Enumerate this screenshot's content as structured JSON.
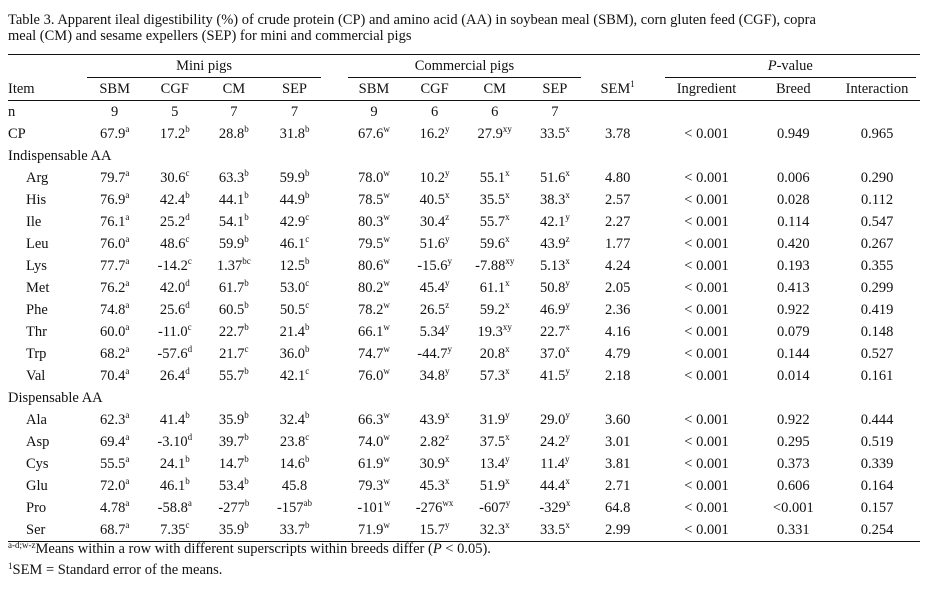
{
  "caption": {
    "line1": "Table 3. Apparent ileal digestibility (%) of crude protein (CP) and amino acid (AA) in soybean meal (SBM), corn gluten feed (CGF), copra",
    "line2": "meal (CM) and sesame expellers (SEP) for mini and commercial pigs"
  },
  "header": {
    "mini_pigs": "Mini pigs",
    "commercial_pigs": "Commercial pigs",
    "pvalue_prefix": "P",
    "pvalue_suffix": "-value",
    "item": "Item",
    "mini_cols": [
      "SBM",
      "CGF",
      "CM",
      "SEP"
    ],
    "com_cols": [
      "SBM",
      "CGF",
      "CM",
      "SEP"
    ],
    "sem": "SEM",
    "sem_sup": "1",
    "ingredient": "Ingredient",
    "breed": "Breed",
    "interaction": "Interaction"
  },
  "n_row": {
    "label": "n",
    "mini": [
      "9",
      "5",
      "7",
      "7"
    ],
    "com": [
      "9",
      "6",
      "6",
      "7"
    ]
  },
  "cp_row": {
    "label": "CP",
    "mini": [
      [
        "67.9",
        "a"
      ],
      [
        "17.2",
        "b"
      ],
      [
        "28.8",
        "b"
      ],
      [
        "31.8",
        "b"
      ]
    ],
    "com": [
      [
        "67.6",
        "w"
      ],
      [
        "16.2",
        "y"
      ],
      [
        "27.9",
        "xy"
      ],
      [
        "33.5",
        "x"
      ]
    ],
    "sem": "3.78",
    "ingredient": "< 0.001",
    "breed": "0.949",
    "interaction": "0.965"
  },
  "sections": [
    {
      "title": "Indispensable AA",
      "rows": [
        {
          "label": "Arg",
          "mini": [
            [
              "79.7",
              "a"
            ],
            [
              "30.6",
              "c"
            ],
            [
              "63.3",
              "b"
            ],
            [
              "59.9",
              "b"
            ]
          ],
          "com": [
            [
              "78.0",
              "w"
            ],
            [
              "10.2",
              "y"
            ],
            [
              "55.1",
              "x"
            ],
            [
              "51.6",
              "x"
            ]
          ],
          "sem": "4.80",
          "ingredient": "< 0.001",
          "breed": "0.006",
          "interaction": "0.290"
        },
        {
          "label": "His",
          "mini": [
            [
              "76.9",
              "a"
            ],
            [
              "42.4",
              "b"
            ],
            [
              "44.1",
              "b"
            ],
            [
              "44.9",
              "b"
            ]
          ],
          "com": [
            [
              "78.5",
              "w"
            ],
            [
              "40.5",
              "x"
            ],
            [
              "35.5",
              "x"
            ],
            [
              "38.3",
              "x"
            ]
          ],
          "sem": "2.57",
          "ingredient": "< 0.001",
          "breed": "0.028",
          "interaction": "0.112"
        },
        {
          "label": "Ile",
          "mini": [
            [
              "76.1",
              "a"
            ],
            [
              "25.2",
              "d"
            ],
            [
              "54.1",
              "b"
            ],
            [
              "42.9",
              "c"
            ]
          ],
          "com": [
            [
              "80.3",
              "w"
            ],
            [
              "30.4",
              "z"
            ],
            [
              "55.7",
              "x"
            ],
            [
              "42.1",
              "y"
            ]
          ],
          "sem": "2.27",
          "ingredient": "< 0.001",
          "breed": "0.114",
          "interaction": "0.547"
        },
        {
          "label": "Leu",
          "mini": [
            [
              "76.0",
              "a"
            ],
            [
              "48.6",
              "c"
            ],
            [
              "59.9",
              "b"
            ],
            [
              "46.1",
              "c"
            ]
          ],
          "com": [
            [
              "79.5",
              "w"
            ],
            [
              "51.6",
              "y"
            ],
            [
              "59.6",
              "x"
            ],
            [
              "43.9",
              "z"
            ]
          ],
          "sem": "1.77",
          "ingredient": "< 0.001",
          "breed": "0.420",
          "interaction": "0.267"
        },
        {
          "label": "Lys",
          "mini": [
            [
              "77.7",
              "a"
            ],
            [
              "-14.2",
              "c"
            ],
            [
              "1.37",
              "bc"
            ],
            [
              "12.5",
              "b"
            ]
          ],
          "com": [
            [
              "80.6",
              "w"
            ],
            [
              "-15.6",
              "y"
            ],
            [
              "-7.88",
              "xy"
            ],
            [
              "5.13",
              "x"
            ]
          ],
          "sem": "4.24",
          "ingredient": "< 0.001",
          "breed": "0.193",
          "interaction": "0.355"
        },
        {
          "label": "Met",
          "mini": [
            [
              "76.2",
              "a"
            ],
            [
              "42.0",
              "d"
            ],
            [
              "61.7",
              "b"
            ],
            [
              "53.0",
              "c"
            ]
          ],
          "com": [
            [
              "80.2",
              "w"
            ],
            [
              "45.4",
              "y"
            ],
            [
              "61.1",
              "x"
            ],
            [
              "50.8",
              "y"
            ]
          ],
          "sem": "2.05",
          "ingredient": "< 0.001",
          "breed": "0.413",
          "interaction": "0.299"
        },
        {
          "label": "Phe",
          "mini": [
            [
              "74.8",
              "a"
            ],
            [
              "25.6",
              "d"
            ],
            [
              "60.5",
              "b"
            ],
            [
              "50.5",
              "c"
            ]
          ],
          "com": [
            [
              "78.2",
              "w"
            ],
            [
              "26.5",
              "z"
            ],
            [
              "59.2",
              "x"
            ],
            [
              "46.9",
              "y"
            ]
          ],
          "sem": "2.36",
          "ingredient": "< 0.001",
          "breed": "0.922",
          "interaction": "0.419"
        },
        {
          "label": "Thr",
          "mini": [
            [
              "60.0",
              "a"
            ],
            [
              "-11.0",
              "c"
            ],
            [
              "22.7",
              "b"
            ],
            [
              "21.4",
              "b"
            ]
          ],
          "com": [
            [
              "66.1",
              "w"
            ],
            [
              "5.34",
              "y"
            ],
            [
              "19.3",
              "xy"
            ],
            [
              "22.7",
              "x"
            ]
          ],
          "sem": "4.16",
          "ingredient": "< 0.001",
          "breed": "0.079",
          "interaction": "0.148"
        },
        {
          "label": "Trp",
          "mini": [
            [
              "68.2",
              "a"
            ],
            [
              "-57.6",
              "d"
            ],
            [
              "21.7",
              "c"
            ],
            [
              "36.0",
              "b"
            ]
          ],
          "com": [
            [
              "74.7",
              "w"
            ],
            [
              "-44.7",
              "y"
            ],
            [
              "20.8",
              "x"
            ],
            [
              "37.0",
              "x"
            ]
          ],
          "sem": "4.79",
          "ingredient": "< 0.001",
          "breed": "0.144",
          "interaction": "0.527"
        },
        {
          "label": "Val",
          "mini": [
            [
              "70.4",
              "a"
            ],
            [
              "26.4",
              "d"
            ],
            [
              "55.7",
              "b"
            ],
            [
              "42.1",
              "c"
            ]
          ],
          "com": [
            [
              "76.0",
              "w"
            ],
            [
              "34.8",
              "y"
            ],
            [
              "57.3",
              "x"
            ],
            [
              "41.5",
              "y"
            ]
          ],
          "sem": "2.18",
          "ingredient": "< 0.001",
          "breed": "0.014",
          "interaction": "0.161"
        }
      ]
    },
    {
      "title": "Dispensable AA",
      "rows": [
        {
          "label": "Ala",
          "mini": [
            [
              "62.3",
              "a"
            ],
            [
              "41.4",
              "b"
            ],
            [
              "35.9",
              "b"
            ],
            [
              "32.4",
              "b"
            ]
          ],
          "com": [
            [
              "66.3",
              "w"
            ],
            [
              "43.9",
              "x"
            ],
            [
              "31.9",
              "y"
            ],
            [
              "29.0",
              "y"
            ]
          ],
          "sem": "3.60",
          "ingredient": "< 0.001",
          "breed": "0.922",
          "interaction": "0.444"
        },
        {
          "label": "Asp",
          "mini": [
            [
              "69.4",
              "a"
            ],
            [
              "-3.10",
              "d"
            ],
            [
              "39.7",
              "b"
            ],
            [
              "23.8",
              "c"
            ]
          ],
          "com": [
            [
              "74.0",
              "w"
            ],
            [
              "2.82",
              "z"
            ],
            [
              "37.5",
              "x"
            ],
            [
              "24.2",
              "y"
            ]
          ],
          "sem": "3.01",
          "ingredient": "< 0.001",
          "breed": "0.295",
          "interaction": "0.519"
        },
        {
          "label": "Cys",
          "mini": [
            [
              "55.5",
              "a"
            ],
            [
              "24.1",
              "b"
            ],
            [
              "14.7",
              "b"
            ],
            [
              "14.6",
              "b"
            ]
          ],
          "com": [
            [
              "61.9",
              "w"
            ],
            [
              "30.9",
              "x"
            ],
            [
              "13.4",
              "y"
            ],
            [
              "11.4",
              "y"
            ]
          ],
          "sem": "3.81",
          "ingredient": "< 0.001",
          "breed": "0.373",
          "interaction": "0.339"
        },
        {
          "label": "Glu",
          "mini": [
            [
              "72.0",
              "a"
            ],
            [
              "46.1",
              "b"
            ],
            [
              "53.4",
              "b"
            ],
            [
              "45.8",
              ""
            ]
          ],
          "com": [
            [
              "79.3",
              "w"
            ],
            [
              "45.3",
              "x"
            ],
            [
              "51.9",
              "x"
            ],
            [
              "44.4",
              "x"
            ]
          ],
          "sem": "2.71",
          "ingredient": "< 0.001",
          "breed": "0.606",
          "interaction": "0.164"
        },
        {
          "label": "Pro",
          "mini": [
            [
              "4.78",
              "a"
            ],
            [
              "-58.8",
              "a"
            ],
            [
              "-277",
              "b"
            ],
            [
              "-157",
              "ab"
            ]
          ],
          "com": [
            [
              "-101",
              "w"
            ],
            [
              "-276",
              "wx"
            ],
            [
              "-607",
              "y"
            ],
            [
              "-329",
              "x"
            ]
          ],
          "sem": "64.8",
          "ingredient": "< 0.001",
          "breed": "<0.001",
          "interaction": "0.157"
        },
        {
          "label": "Ser",
          "mini": [
            [
              "68.7",
              "a"
            ],
            [
              "7.35",
              "c"
            ],
            [
              "35.9",
              "b"
            ],
            [
              "33.7",
              "b"
            ]
          ],
          "com": [
            [
              "71.9",
              "w"
            ],
            [
              "15.7",
              "y"
            ],
            [
              "32.3",
              "x"
            ],
            [
              "33.5",
              "x"
            ]
          ],
          "sem": "2.99",
          "ingredient": "< 0.001",
          "breed": "0.331",
          "interaction": "0.254"
        }
      ]
    }
  ],
  "footnotes": {
    "f1_sup": "a-d;w-z",
    "f1_text": "Means within a row with different superscripts within breeds differ (",
    "f1_p": "P",
    "f1_end": " < 0.05).",
    "f2_sup": "1",
    "f2_text": "SEM = Standard error of the means."
  }
}
